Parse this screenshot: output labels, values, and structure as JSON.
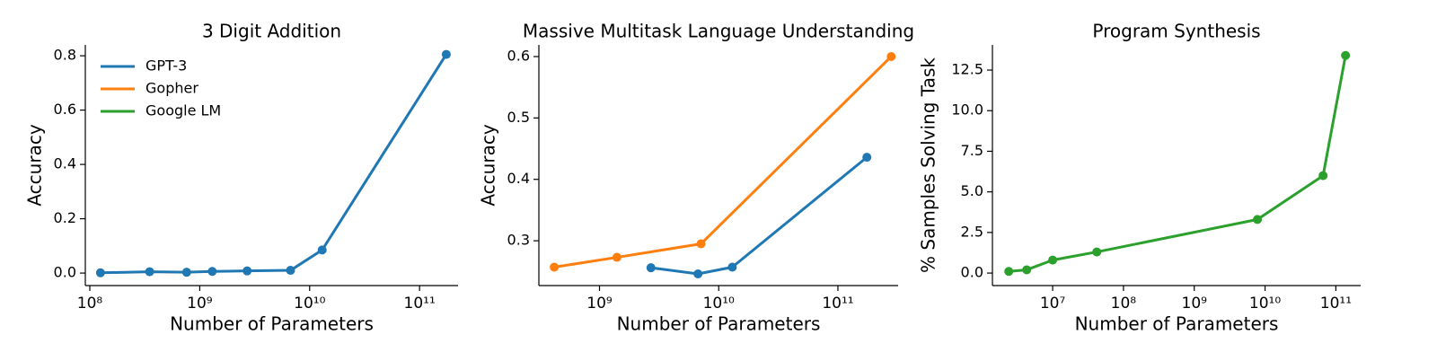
{
  "chart_data": [
    {
      "type": "line",
      "title": "3 Digit Addition",
      "xlabel": "Number of Parameters",
      "ylabel": "Accuracy",
      "xscale": "log",
      "xlim": [
        91000000,
        224000000000
      ],
      "xticks": [
        {
          "value": 100000000,
          "label": "10⁸"
        },
        {
          "value": 1000000000,
          "label": "10⁹"
        },
        {
          "value": 10000000000,
          "label": "10¹⁰"
        },
        {
          "value": 100000000000,
          "label": "10¹¹"
        }
      ],
      "ylim": [
        -0.046,
        0.84
      ],
      "yticks": [
        {
          "value": 0,
          "label": "0.0"
        },
        0.2,
        0.4,
        0.6,
        0.8
      ],
      "legend": [
        {
          "name": "GPT-3",
          "color": "#1f77b4"
        },
        {
          "name": "Gopher",
          "color": "#ff7f0e"
        },
        {
          "name": "Google LM",
          "color": "#2ca02c"
        }
      ],
      "legend_position": "upper-left",
      "series": [
        {
          "name": "GPT-3",
          "color": "#1f77b4",
          "x": [
            125000000,
            350000000,
            760000000,
            1300000000,
            2700000000,
            6700000000,
            13000000000,
            175000000000
          ],
          "values": [
            0.001,
            0.005,
            0.003,
            0.006,
            0.008,
            0.01,
            0.085,
            0.805
          ]
        }
      ]
    },
    {
      "type": "line",
      "title": "Massive Multitask Language Understanding",
      "xlabel": "Number of Parameters",
      "ylabel": "Accuracy",
      "xscale": "log",
      "xlim": [
        310000000,
        320000000000
      ],
      "xticks": [
        {
          "value": 1000000000,
          "label": "10⁹"
        },
        {
          "value": 10000000000,
          "label": "10¹⁰"
        },
        {
          "value": 100000000000,
          "label": "10¹¹"
        }
      ],
      "ylim": [
        0.227,
        0.619
      ],
      "yticks": [
        0.3,
        0.4,
        0.5,
        0.6
      ],
      "series": [
        {
          "name": "Gopher",
          "color": "#ff7f0e",
          "x": [
            417000000,
            1400000000,
            7100000000,
            280000000000
          ],
          "values": [
            0.257,
            0.273,
            0.295,
            0.6
          ]
        },
        {
          "name": "GPT-3",
          "color": "#1f77b4",
          "x": [
            2700000000,
            6700000000,
            13000000000,
            175000000000
          ],
          "values": [
            0.256,
            0.246,
            0.257,
            0.436
          ]
        }
      ]
    },
    {
      "type": "line",
      "title": "Program Synthesis",
      "xlabel": "Number of Parameters",
      "ylabel": "% Samples Solving Task",
      "xscale": "log",
      "xlim": [
        1410000,
        224000000000
      ],
      "xticks": [
        {
          "value": 10000000,
          "label": "10⁷"
        },
        {
          "value": 100000000,
          "label": "10⁸"
        },
        {
          "value": 1000000000,
          "label": "10⁹"
        },
        {
          "value": 10000000000,
          "label": "10¹⁰"
        },
        {
          "value": 100000000000,
          "label": "10¹¹"
        }
      ],
      "ylim": [
        -0.77,
        14.05
      ],
      "yticks": [
        {
          "value": 0,
          "label": "0.0"
        },
        2.5,
        {
          "value": 5,
          "label": "5.0"
        },
        7.5,
        {
          "value": 10,
          "label": "10.0"
        },
        12.5
      ],
      "series": [
        {
          "name": "Google LM",
          "color": "#2ca02c",
          "x": [
            2400000,
            4300000,
            10000000,
            42000000,
            7800000000,
            66000000000,
            137000000000
          ],
          "values": [
            0.1,
            0.2,
            0.8,
            1.3,
            3.3,
            6.0,
            13.4
          ]
        }
      ]
    }
  ]
}
